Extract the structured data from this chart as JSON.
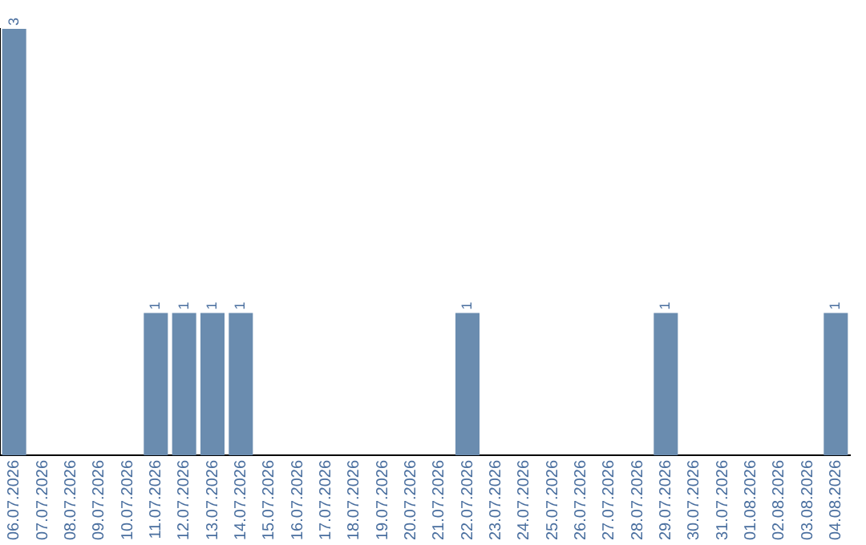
{
  "chart_data": {
    "type": "bar",
    "categories": [
      "06.07.2026",
      "07.07.2026",
      "08.07.2026",
      "09.07.2026",
      "10.07.2026",
      "11.07.2026",
      "12.07.2026",
      "13.07.2026",
      "14.07.2026",
      "15.07.2026",
      "16.07.2026",
      "17.07.2026",
      "18.07.2026",
      "19.07.2026",
      "20.07.2026",
      "21.07.2026",
      "22.07.2026",
      "23.07.2026",
      "24.07.2026",
      "25.07.2026",
      "26.07.2026",
      "27.07.2026",
      "28.07.2026",
      "29.07.2026",
      "30.07.2026",
      "31.07.2026",
      "01.08.2026",
      "02.08.2026",
      "03.08.2026",
      "04.08.2026"
    ],
    "values": [
      3,
      0,
      0,
      0,
      0,
      1,
      1,
      1,
      1,
      0,
      0,
      0,
      0,
      0,
      0,
      0,
      1,
      0,
      0,
      0,
      0,
      0,
      0,
      1,
      0,
      0,
      0,
      0,
      0,
      1
    ],
    "value_labels": [
      "3",
      null,
      null,
      null,
      null,
      "1",
      "1",
      "1",
      "1",
      null,
      null,
      null,
      null,
      null,
      null,
      null,
      "1",
      null,
      null,
      null,
      null,
      null,
      null,
      "1",
      null,
      null,
      null,
      null,
      null,
      "1"
    ],
    "color": "#6a8caf",
    "grid": false,
    "legend": false
  }
}
